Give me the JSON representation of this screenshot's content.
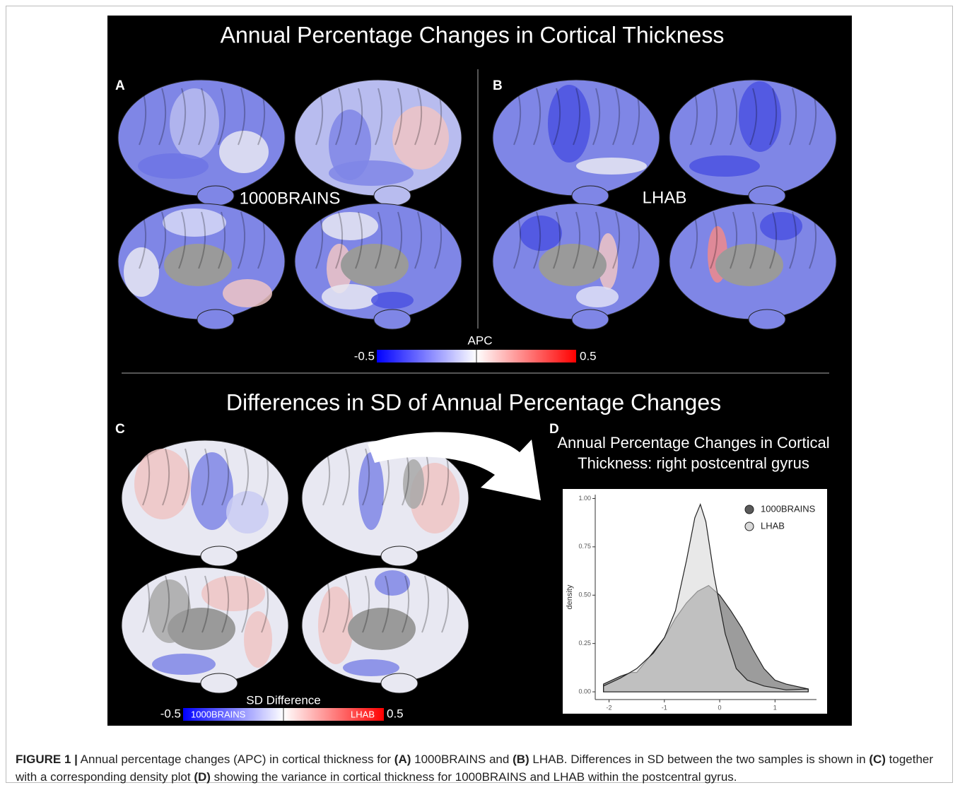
{
  "figure": {
    "title": "Annual Percentage Changes in Cortical Thickness",
    "panel_a": {
      "label": "A",
      "name": "1000BRAINS"
    },
    "panel_b": {
      "label": "B",
      "name": "LHAB"
    },
    "colorbar_apc": {
      "title": "APC",
      "min": -0.5,
      "max": 0.5
    },
    "subtitle": "Differences in SD of Annual Percentage Changes",
    "panel_c": {
      "label": "C"
    },
    "colorbar_sd": {
      "title": "SD Difference",
      "min": -0.5,
      "max": 0.5,
      "low_label": "1000BRAINS",
      "high_label": "LHAB"
    },
    "panel_d": {
      "label": "D",
      "title_lines": [
        "Annual Percentage Changes in Cortical",
        "Thickness: right postcentral gyrus"
      ],
      "chart": {
        "type": "area",
        "ylabel": "density",
        "xlim": [
          -2.25,
          1.75
        ],
        "ylim": [
          -0.04,
          1.02
        ],
        "xticks": [
          -2,
          -1,
          0,
          1
        ],
        "yticks": [
          {
            "value": 0,
            "label": "0.00"
          },
          {
            "value": 0.25,
            "label": "0.25"
          },
          {
            "value": 0.5,
            "label": "0.50"
          },
          {
            "value": 0.75,
            "label": "0.75"
          },
          {
            "value": 1,
            "label": "1.00"
          }
        ],
        "series": [
          {
            "name": "1000BRAINS",
            "color": "#5a5a5a",
            "x": [
              -2.1,
              -1.8,
              -1.6,
              -1.5,
              -1.3,
              -1.0,
              -0.8,
              -0.6,
              -0.4,
              -0.2,
              0,
              0.2,
              0.4,
              0.6,
              0.8,
              1.0,
              1.2,
              1.6
            ],
            "values": [
              0.04,
              0.08,
              0.1,
              0.1,
              0.17,
              0.28,
              0.38,
              0.46,
              0.52,
              0.55,
              0.5,
              0.42,
              0.33,
              0.22,
              0.12,
              0.06,
              0.04,
              0.015
            ]
          },
          {
            "name": "LHAB",
            "color": "#d9d9d9",
            "x": [
              -2.1,
              -1.8,
              -1.5,
              -1.2,
              -1.0,
              -0.8,
              -0.6,
              -0.45,
              -0.35,
              -0.25,
              -0.1,
              0.1,
              0.3,
              0.5,
              0.8,
              1.2,
              1.6
            ],
            "values": [
              0.03,
              0.07,
              0.12,
              0.2,
              0.28,
              0.42,
              0.68,
              0.9,
              0.97,
              0.88,
              0.6,
              0.3,
              0.12,
              0.06,
              0.03,
              0.01,
              0.015
            ]
          }
        ]
      }
    }
  },
  "caption": {
    "parts": [
      "FIGURE 1 |",
      " Annual percentage changes (APC) in cortical thickness for ",
      "(A)",
      " 1000BRAINS and ",
      "(B)",
      " LHAB. Differences in SD between the two samples is shown in ",
      "(C)",
      " together with a corresponding density plot ",
      "(D)",
      " showing the variance in cortical thickness for 1000BRAINS and LHAB within the postcentral gyrus."
    ]
  }
}
